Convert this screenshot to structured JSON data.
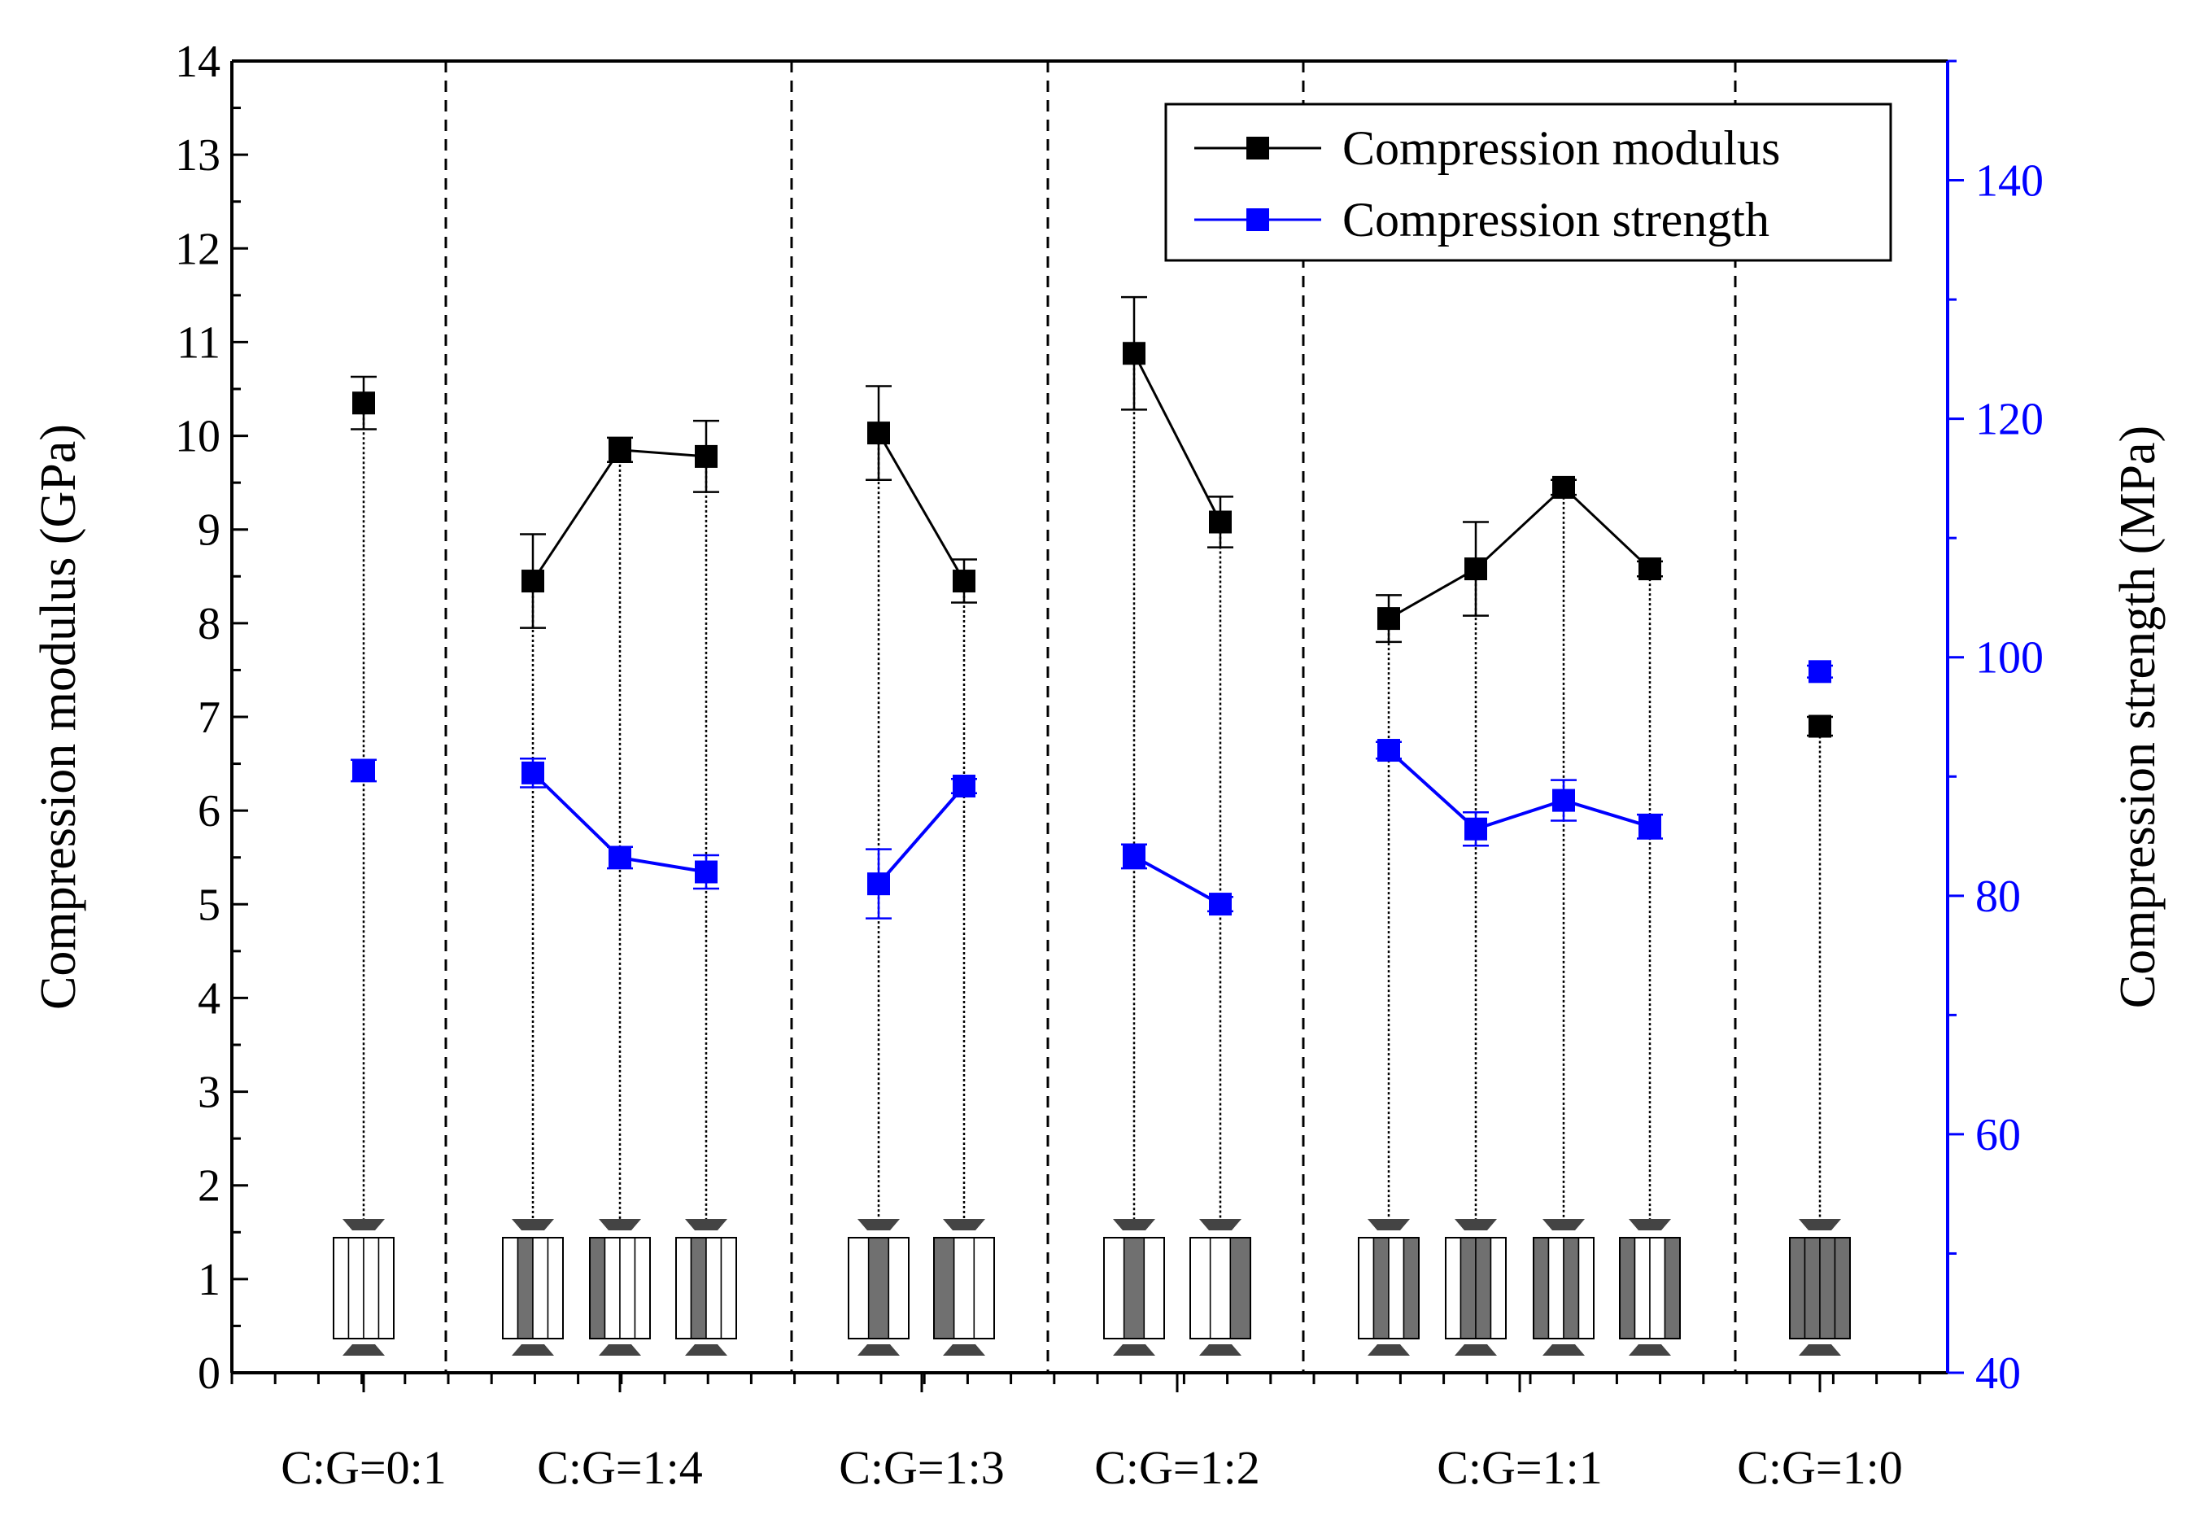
{
  "chart_data": {
    "type": "scatter",
    "title": "",
    "y_left": {
      "label": "Compression modulus (GPa)",
      "range": [
        0,
        14
      ],
      "ticks": [
        0,
        1,
        2,
        3,
        4,
        5,
        6,
        7,
        8,
        9,
        10,
        11,
        12,
        13,
        14
      ]
    },
    "y_right": {
      "label": "Compression strength (MPa)",
      "range": [
        40,
        150
      ],
      "ticks": [
        40,
        60,
        80,
        100,
        120,
        140
      ]
    },
    "colors": {
      "modulus": "#000000",
      "strength": "#0000ff"
    },
    "legend": {
      "position": "top-right",
      "entries": [
        "Compression modulus",
        "Compression strength"
      ]
    },
    "groups": [
      {
        "label": "C:G=0:1",
        "specimens": [
          {
            "modulus": 10.35,
            "mod_err": 0.28,
            "strength": 90.5,
            "str_err": 0.9,
            "pattern": [
              0,
              0,
              0,
              0
            ]
          }
        ]
      },
      {
        "label": "C:G=1:4",
        "specimens": [
          {
            "modulus": 8.45,
            "mod_err": 0.5,
            "strength": 90.3,
            "str_err": 1.2,
            "pattern": [
              0,
              1,
              0,
              0
            ]
          },
          {
            "modulus": 9.85,
            "mod_err": 0.13,
            "strength": 83.2,
            "str_err": 0.9,
            "pattern": [
              1,
              0,
              0,
              0
            ]
          },
          {
            "modulus": 9.78,
            "mod_err": 0.38,
            "strength": 82.0,
            "str_err": 1.4,
            "pattern": [
              0,
              1,
              0,
              0
            ]
          }
        ]
      },
      {
        "label": "C:G=1:3",
        "specimens": [
          {
            "modulus": 10.03,
            "mod_err": 0.5,
            "strength": 81.0,
            "str_err": 2.9,
            "pattern": [
              0,
              1,
              0
            ]
          },
          {
            "modulus": 8.45,
            "mod_err": 0.23,
            "strength": 89.2,
            "str_err": 0.6,
            "pattern": [
              1,
              0,
              0
            ]
          }
        ]
      },
      {
        "label": "C:G=1:2",
        "specimens": [
          {
            "modulus": 10.88,
            "mod_err": 0.6,
            "strength": 83.3,
            "str_err": 1.0,
            "pattern": [
              0,
              1,
              0
            ]
          },
          {
            "modulus": 9.08,
            "mod_err": 0.27,
            "strength": 79.3,
            "str_err": 0.6,
            "pattern": [
              0,
              0,
              1
            ]
          }
        ]
      },
      {
        "label": "C:G=1:1",
        "specimens": [
          {
            "modulus": 8.05,
            "mod_err": 0.25,
            "strength": 92.2,
            "str_err": 0.7,
            "pattern": [
              0,
              1,
              0,
              1
            ]
          },
          {
            "modulus": 8.58,
            "mod_err": 0.5,
            "strength": 85.6,
            "str_err": 1.4,
            "pattern": [
              0,
              1,
              1,
              0
            ]
          },
          {
            "modulus": 9.45,
            "mod_err": 0.08,
            "strength": 88.0,
            "str_err": 1.7,
            "pattern": [
              1,
              0,
              1,
              0
            ]
          },
          {
            "modulus": 8.58,
            "mod_err": 0.08,
            "strength": 85.8,
            "str_err": 1.0,
            "pattern": [
              1,
              0,
              0,
              1
            ]
          }
        ]
      },
      {
        "label": "C:G=1:0",
        "specimens": [
          {
            "modulus": 6.9,
            "mod_err": 0.1,
            "strength": 98.8,
            "str_err": 0.5,
            "pattern": [
              1,
              1,
              1,
              1
            ]
          }
        ]
      }
    ]
  }
}
